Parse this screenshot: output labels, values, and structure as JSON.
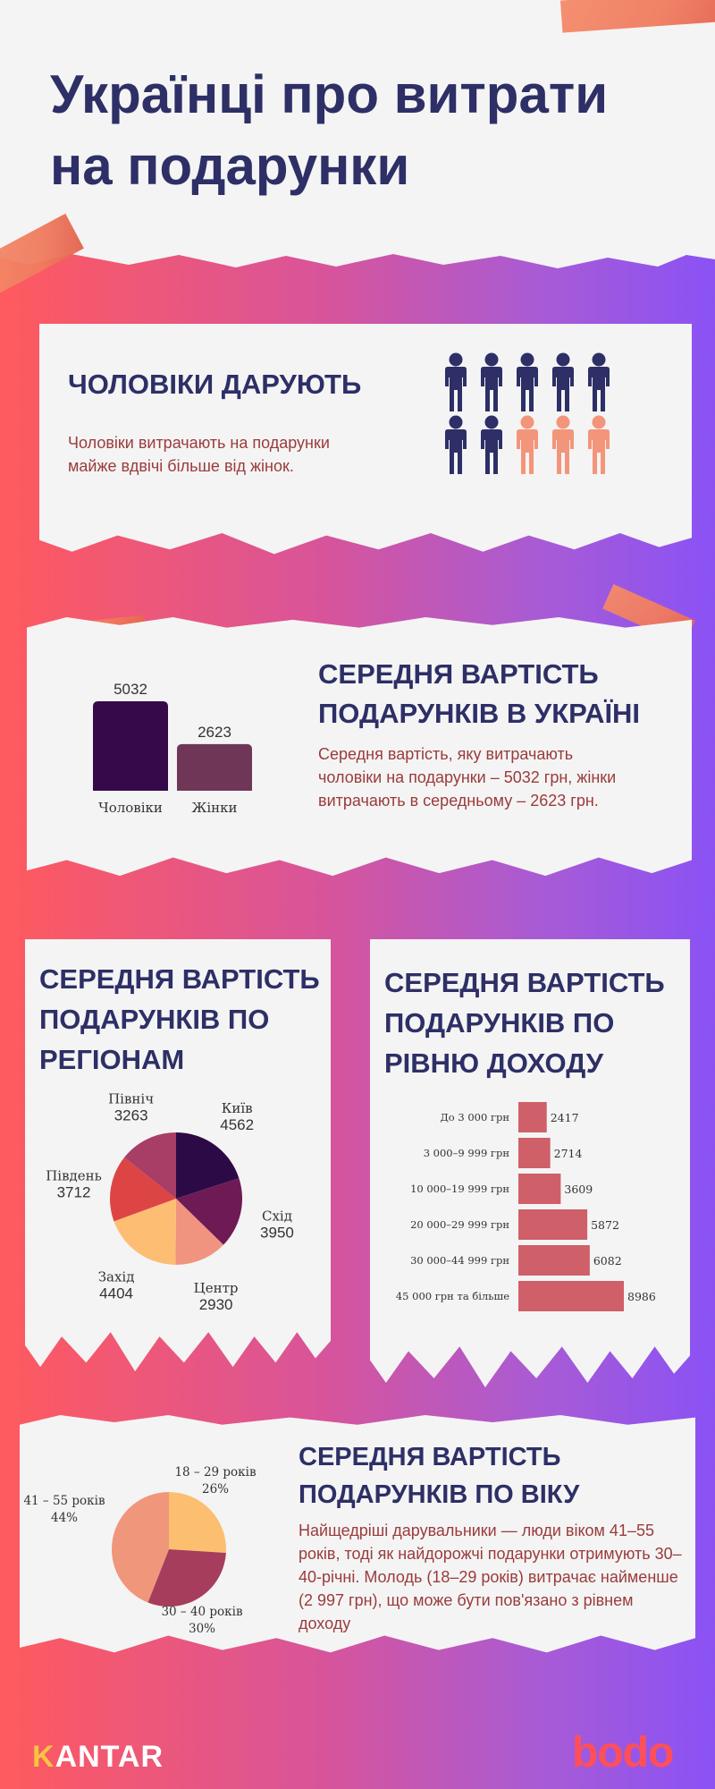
{
  "title": "Українці про витрати на подарунки",
  "colors": {
    "navy": "#2d2f66",
    "maroon": "#9b3b3b",
    "men_bar": "#36094a",
    "women_bar": "#6f3657",
    "person_navy": "#2d2f66",
    "person_salmon": "#f3957a",
    "income_bar": "#cf5f68"
  },
  "section1": {
    "heading": "ЧОЛОВІКИ ДАРУЮТЬ",
    "text": "Чоловіки витрачають на подарунки майже вдвічі більше від жінок.",
    "icon": "person-icon",
    "people": {
      "total": 10,
      "navy": 7,
      "salmon": 3
    }
  },
  "section2": {
    "heading": "СЕРЕДНЯ ВАРТІСТЬ ПОДАРУНКІВ В УКРАЇНІ",
    "text": "Середня вартість, яку витрачають чоловіки на подарунки – 5032 грн, жінки витрачають в середньому – 2623 грн."
  },
  "section3": {
    "heading": "СЕРЕДНЯ ВАРТІСТЬ ПОДАРУНКІВ ПО РЕГІОНАМ"
  },
  "section4": {
    "heading": "СЕРЕДНЯ ВАРТІСТЬ ПОДАРУНКІВ ПО РІВНЮ ДОХОДУ"
  },
  "section5": {
    "heading": "СЕРЕДНЯ ВАРТІСТЬ ПОДАРУНКІВ ПО ВІКУ",
    "text": "Найщедріші дарувальники — люди віком 41–55 років, тоді як найдорожчі подарунки отримують 30–40-річні. Молодь (18–29 років) витрачає найменше (2 997 грн), що може бути пов'язано з рівнем доходу"
  },
  "logos": {
    "kantar_k": "K",
    "kantar_rest": "ANTAR",
    "bodo": "bodo"
  },
  "chart_data": [
    {
      "type": "bar",
      "categories": [
        "Чоловіки",
        "Жінки"
      ],
      "values": [
        5032,
        2623
      ],
      "colors": [
        "#36094a",
        "#6f3657"
      ],
      "title": "",
      "xlabel": "",
      "ylabel": "",
      "ylim": [
        0,
        5032
      ]
    },
    {
      "type": "pie",
      "slices": [
        {
          "label": "Київ",
          "value": 4562,
          "color": "#2c0a45"
        },
        {
          "label": "Схід",
          "value": 3950,
          "color": "#6e1a55"
        },
        {
          "label": "Центр",
          "value": 2930,
          "color": "#f09480"
        },
        {
          "label": "Захід",
          "value": 4404,
          "color": "#fdbe74"
        },
        {
          "label": "Південь",
          "value": 3712,
          "color": "#dd4545"
        },
        {
          "label": "Північ",
          "value": 3263,
          "color": "#a83d66"
        }
      ]
    },
    {
      "type": "bar",
      "orientation": "horizontal",
      "categories": [
        "До 3 000 грн",
        "3 000–9 999 грн",
        "10 000–19 999 грн",
        "20 000–29 999 грн",
        "30 000–44 999 грн",
        "45 000 грн та більше"
      ],
      "values": [
        2417,
        2714,
        3609,
        5872,
        6082,
        8986
      ],
      "color": "#cf5f68",
      "xlim": [
        0,
        8986
      ]
    },
    {
      "type": "pie",
      "slices": [
        {
          "label": "18 – 29 років",
          "value": 26,
          "display": "26%",
          "color": "#fbbf6f"
        },
        {
          "label": "30 – 40 років",
          "value": 30,
          "display": "30%",
          "color": "#a63d5c"
        },
        {
          "label": "41 – 55 років",
          "value": 44,
          "display": "44%",
          "color": "#f0967a"
        }
      ]
    }
  ]
}
